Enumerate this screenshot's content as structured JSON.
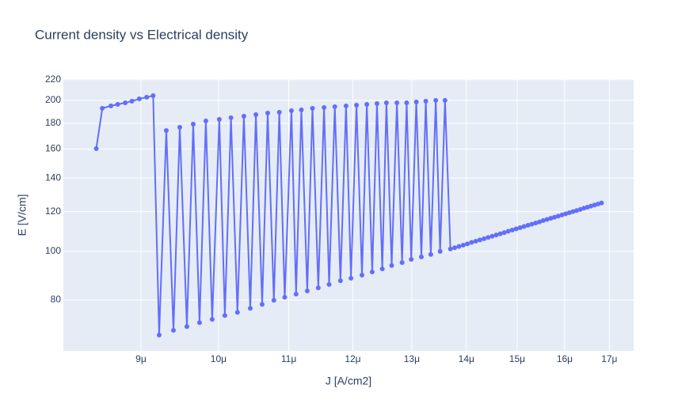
{
  "chart_data": {
    "type": "line",
    "title": "Current density vs Electrical density",
    "x_label": "J [A/cm2]",
    "y_label": "E [V/cm]",
    "xscale": "log",
    "yscale": "log",
    "grid": true,
    "xlim": [
      8.1e-06,
      1.757e-05
    ],
    "ylim": [
      63.3,
      220.6
    ],
    "xticks": [
      {
        "value": 9e-06,
        "label": "9μ"
      },
      {
        "value": 1e-05,
        "label": "10μ"
      },
      {
        "value": 1.1e-05,
        "label": "11μ"
      },
      {
        "value": 1.2e-05,
        "label": "12μ"
      },
      {
        "value": 1.3e-05,
        "label": "13μ"
      },
      {
        "value": 1.4e-05,
        "label": "14μ"
      },
      {
        "value": 1.5e-05,
        "label": "15μ"
      },
      {
        "value": 1.6e-05,
        "label": "16μ"
      },
      {
        "value": 1.7e-05,
        "label": "17μ"
      }
    ],
    "yticks": [
      80,
      100,
      120,
      140,
      160,
      180,
      200,
      220
    ],
    "color": "#636efa",
    "x": [
      8.47e-06,
      8.54e-06,
      8.64e-06,
      8.72e-06,
      8.81e-06,
      8.89e-06,
      8.98e-06,
      9.07e-06,
      9.15e-06,
      9.225e-06,
      9.315e-06,
      9.406e-06,
      9.487e-06,
      9.579e-06,
      9.662e-06,
      9.745e-06,
      9.829e-06,
      9.914e-06,
      1.001e-05,
      1.0086e-05,
      1.017e-05,
      1.026e-05,
      1.035e-05,
      1.044e-05,
      1.052e-05,
      1.061e-05,
      1.069e-05,
      1.078e-05,
      1.086e-05,
      1.094e-05,
      1.104e-05,
      1.111e-05,
      1.119e-05,
      1.128e-05,
      1.136e-05,
      1.145e-05,
      1.154e-05,
      1.162e-05,
      1.171e-05,
      1.18e-05,
      1.189e-05,
      1.197e-05,
      1.206e-05,
      1.215e-05,
      1.223e-05,
      1.232e-05,
      1.24e-05,
      1.249e-05,
      1.256e-05,
      1.265e-05,
      1.274e-05,
      1.283e-05,
      1.291e-05,
      1.299e-05,
      1.308e-05,
      1.317e-05,
      1.325e-05,
      1.334e-05,
      1.343e-05,
      1.351e-05,
      1.36e-05,
      1.37e-05,
      1.378e-05,
      1.386e-05,
      1.394e-05,
      1.402e-05,
      1.41e-05,
      1.418e-05,
      1.426e-05,
      1.434e-05,
      1.442e-05,
      1.45e-05,
      1.458e-05,
      1.466e-05,
      1.474e-05,
      1.482e-05,
      1.49e-05,
      1.498e-05,
      1.506e-05,
      1.514e-05,
      1.522e-05,
      1.53e-05,
      1.538e-05,
      1.546e-05,
      1.554e-05,
      1.562e-05,
      1.57e-05,
      1.578e-05,
      1.586e-05,
      1.594e-05,
      1.602e-05,
      1.61e-05,
      1.618e-05,
      1.626e-05,
      1.634e-05,
      1.642e-05,
      1.65e-05,
      1.658e-05,
      1.666e-05,
      1.674e-05,
      1.682e-05
    ],
    "values": [
      160.3,
      192.9,
      195.0,
      196.4,
      197.8,
      199.3,
      201.5,
      202.9,
      204.4,
      68.1,
      174.2,
      69.6,
      176.8,
      70.8,
      179.4,
      72.1,
      182.0,
      73.2,
      183.3,
      74.5,
      184.7,
      75.6,
      186.0,
      77.0,
      187.4,
      78.4,
      188.7,
      79.9,
      189.4,
      81.0,
      190.8,
      82.2,
      191.5,
      83.4,
      192.9,
      84.6,
      193.6,
      85.9,
      194.3,
      87.4,
      195.0,
      88.4,
      195.7,
      89.7,
      196.4,
      91.0,
      197.1,
      92.3,
      197.8,
      93.7,
      197.8,
      95.0,
      197.8,
      96.4,
      198.6,
      97.5,
      199.3,
      98.6,
      200.0,
      100.0,
      200.0,
      101.1,
      101.7,
      102.3,
      102.9,
      103.5,
      104.2,
      104.8,
      105.4,
      106.0,
      106.6,
      107.2,
      107.8,
      108.4,
      109.0,
      109.7,
      110.3,
      110.9,
      111.5,
      112.1,
      112.7,
      113.3,
      113.9,
      114.5,
      115.2,
      115.8,
      116.4,
      117.0,
      117.6,
      118.2,
      118.8,
      119.4,
      120.0,
      120.6,
      121.2,
      121.9,
      122.5,
      123.1,
      123.7,
      124.3,
      124.9
    ]
  }
}
